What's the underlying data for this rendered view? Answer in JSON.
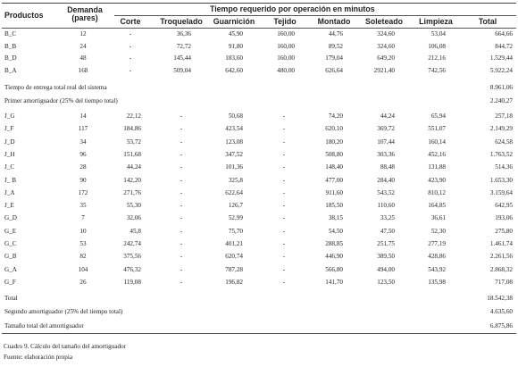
{
  "table": {
    "headers": {
      "productos": "Productos",
      "demanda_1": "Demanda",
      "demanda_2": "(pares)",
      "group": "Tiempo requerido por operación en minutos",
      "corte": "Corte",
      "troquelado": "Troquelado",
      "guarnicion": "Guarnición",
      "tejido": "Tejido",
      "montado": "Montado",
      "soleteado": "Soleteado",
      "limpieza": "Limpieza",
      "total": "Total"
    },
    "rows_a": [
      {
        "producto": "B_C",
        "demanda": "12",
        "corte": "-",
        "troquelado": "36,36",
        "guarnicion": "45,90",
        "tejido": "160,00",
        "montado": "44,76",
        "soleteado": "324,60",
        "limpieza": "53,04",
        "total": "664,66"
      },
      {
        "producto": "B_B",
        "demanda": "24",
        "corte": "-",
        "troquelado": "72,72",
        "guarnicion": "91,80",
        "tejido": "160,00",
        "montado": "89,52",
        "soleteado": "324,60",
        "limpieza": "106,08",
        "total": "844,72"
      },
      {
        "producto": "B_D",
        "demanda": "48",
        "corte": "-",
        "troquelado": "145,44",
        "guarnicion": "183,60",
        "tejido": "160,00",
        "montado": "179,04",
        "soleteado": "649,20",
        "limpieza": "212,16",
        "total": "1.529,44"
      },
      {
        "producto": "B_A",
        "demanda": "168",
        "corte": "-",
        "troquelado": "509,04",
        "guarnicion": "642,60",
        "tejido": "480,00",
        "montado": "626,64",
        "soleteado": "2921,40",
        "limpieza": "742,56",
        "total": "5.922,24"
      }
    ],
    "summary_a": [
      {
        "label": "Tiempo de entrega total real del sistema",
        "value": "8.961,06"
      },
      {
        "label": "Primer amortiguador (25% del tiempo total)",
        "value": "2.240,27"
      }
    ],
    "rows_b": [
      {
        "producto": "J_G",
        "demanda": "14",
        "corte": "22,12",
        "troquelado": "-",
        "guarnicion": "50,68",
        "tejido": "-",
        "montado": "74,20",
        "soleteado": "44,24",
        "limpieza": "65,94",
        "total": "257,18"
      },
      {
        "producto": "J_F",
        "demanda": "117",
        "corte": "184,86",
        "troquelado": "-",
        "guarnicion": "423,54",
        "tejido": "-",
        "montado": "620,10",
        "soleteado": "369,72",
        "limpieza": "551,07",
        "total": "2.149,29"
      },
      {
        "producto": "J_D",
        "demanda": "34",
        "corte": "53,72",
        "troquelado": "-",
        "guarnicion": "123,08",
        "tejido": "-",
        "montado": "180,20",
        "soleteado": "107,44",
        "limpieza": "160,14",
        "total": "624,58"
      },
      {
        "producto": "J_H",
        "demanda": "96",
        "corte": "151,68",
        "troquelado": "-",
        "guarnicion": "347,52",
        "tejido": "-",
        "montado": "508,80",
        "soleteado": "303,36",
        "limpieza": "452,16",
        "total": "1.763,52"
      },
      {
        "producto": "J_C",
        "demanda": "28",
        "corte": "44,24",
        "troquelado": "-",
        "guarnicion": "101,36",
        "tejido": "-",
        "montado": "148,40",
        "soleteado": "88,48",
        "limpieza": "131,88",
        "total": "514,36"
      },
      {
        "producto": "J_ B",
        "demanda": "90",
        "corte": "142,20",
        "troquelado": "-",
        "guarnicion": "325,8",
        "tejido": "-",
        "montado": "477,00",
        "soleteado": "284,40",
        "limpieza": "423,90",
        "total": "1.653,30"
      },
      {
        "producto": "J_A",
        "demanda": "172",
        "corte": "271,76",
        "troquelado": "-",
        "guarnicion": "622,64",
        "tejido": "-",
        "montado": "911,60",
        "soleteado": "543,52",
        "limpieza": "810,12",
        "total": "3.159,64"
      },
      {
        "producto": "J_E",
        "demanda": "35",
        "corte": "55,30",
        "troquelado": "-",
        "guarnicion": "126,7",
        "tejido": "-",
        "montado": "185,50",
        "soleteado": "110,60",
        "limpieza": "164,85",
        "total": "642,95"
      },
      {
        "producto": "G_D",
        "demanda": "7",
        "corte": "32,06",
        "troquelado": "-",
        "guarnicion": "52,99",
        "tejido": "-",
        "montado": "38,15",
        "soleteado": "33,25",
        "limpieza": "36,61",
        "total": "193,06"
      },
      {
        "producto": "G_E",
        "demanda": "10",
        "corte": "45,8",
        "troquelado": "-",
        "guarnicion": "75,70",
        "tejido": "-",
        "montado": "54,50",
        "soleteado": "47,50",
        "limpieza": "52,30",
        "total": "275,80"
      },
      {
        "producto": "G_C",
        "demanda": "53",
        "corte": "242,74",
        "troquelado": "-",
        "guarnicion": "401,21",
        "tejido": "-",
        "montado": "288,85",
        "soleteado": "251,75",
        "limpieza": "277,19",
        "total": "1.461,74"
      },
      {
        "producto": "G_B",
        "demanda": "82",
        "corte": "375,56",
        "troquelado": "-",
        "guarnicion": "620,74",
        "tejido": "-",
        "montado": "446,90",
        "soleteado": "389,50",
        "limpieza": "428,86",
        "total": "2.261,56"
      },
      {
        "producto": "G_A",
        "demanda": "104",
        "corte": "476,32",
        "troquelado": "-",
        "guarnicion": "787,28",
        "tejido": "-",
        "montado": "566,80",
        "soleteado": "494,00",
        "limpieza": "543,92",
        "total": "2.868,32"
      },
      {
        "producto": "G_F",
        "demanda": "26",
        "corte": "119,08",
        "troquelado": "-",
        "guarnicion": "196,82",
        "tejido": "-",
        "montado": "141,70",
        "soleteado": "123,50",
        "limpieza": "135,98",
        "total": "717,08"
      }
    ],
    "summary_b": [
      {
        "label": "Total",
        "value": "18.542,38"
      },
      {
        "label": "Segundo amortiguador (25% del tiempo total)",
        "value": "4.635,60"
      },
      {
        "label": "Tamaño total del amortiguador",
        "value": "6.875,86"
      }
    ]
  },
  "caption": "Cuadro 9. Cálculo del tamaño del amortiguador",
  "source": "Fuente: elaboración propia"
}
